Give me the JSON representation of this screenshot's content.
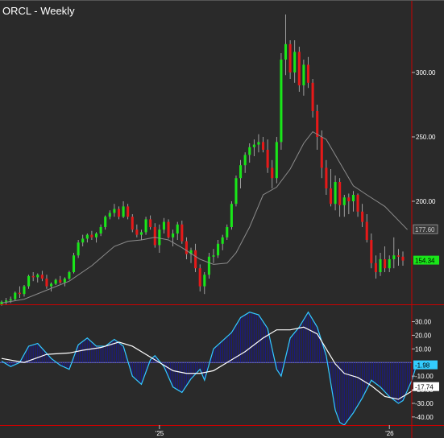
{
  "header": {
    "title": "ORCL - Weekly"
  },
  "colors": {
    "background": "#2a2a2a",
    "up": "#19e619",
    "down": "#e61919",
    "sma": "#8c8c8c",
    "macd_line": "#33ccff",
    "signal_line": "#ffffff",
    "histogram": "#1a1a80",
    "divider": "#cc0000"
  },
  "chart_data": [
    {
      "type": "candlestick",
      "title": "ORCL - Weekly",
      "y_ticks": [
        "300.00",
        "250.00",
        "200.00"
      ],
      "ylim": [
        120,
        345
      ],
      "x_ticks": [
        "'25",
        "'26"
      ],
      "last_close_label": "154.34",
      "sma_label": "177.60",
      "ohlc": [
        [
          120,
          123,
          119,
          122
        ],
        [
          122,
          125,
          120,
          123
        ],
        [
          123,
          126,
          121,
          124
        ],
        [
          124,
          130,
          123,
          129
        ],
        [
          129,
          134,
          125,
          128
        ],
        [
          128,
          135,
          126,
          134
        ],
        [
          134,
          143,
          132,
          142
        ],
        [
          142,
          145,
          138,
          141
        ],
        [
          141,
          144,
          137,
          143
        ],
        [
          143,
          146,
          138,
          140
        ],
        [
          140,
          143,
          132,
          134
        ],
        [
          134,
          137,
          130,
          136
        ],
        [
          136,
          140,
          135,
          139
        ],
        [
          139,
          142,
          136,
          137
        ],
        [
          137,
          141,
          134,
          140
        ],
        [
          140,
          146,
          139,
          145
        ],
        [
          145,
          160,
          144,
          158
        ],
        [
          158,
          170,
          156,
          168
        ],
        [
          168,
          174,
          165,
          171
        ],
        [
          171,
          175,
          168,
          174
        ],
        [
          174,
          177,
          170,
          172
        ],
        [
          172,
          176,
          168,
          175
        ],
        [
          175,
          182,
          173,
          180
        ],
        [
          180,
          189,
          178,
          188
        ],
        [
          188,
          193,
          186,
          191
        ],
        [
          191,
          198,
          188,
          194
        ],
        [
          194,
          196,
          186,
          188
        ],
        [
          188,
          200,
          187,
          196
        ],
        [
          196,
          198,
          186,
          188
        ],
        [
          188,
          190,
          176,
          178
        ],
        [
          178,
          182,
          172,
          174
        ],
        [
          174,
          178,
          170,
          176
        ],
        [
          176,
          188,
          174,
          186
        ],
        [
          186,
          189,
          178,
          180
        ],
        [
          180,
          183,
          164,
          166
        ],
        [
          166,
          182,
          160,
          178
        ],
        [
          178,
          187,
          175,
          184
        ],
        [
          184,
          186,
          171,
          172
        ],
        [
          172,
          178,
          165,
          175
        ],
        [
          175,
          184,
          170,
          182
        ],
        [
          182,
          185,
          167,
          169
        ],
        [
          169,
          172,
          155,
          159
        ],
        [
          159,
          164,
          152,
          162
        ],
        [
          162,
          167,
          145,
          148
        ],
        [
          148,
          151,
          130,
          134
        ],
        [
          134,
          145,
          128,
          143
        ],
        [
          143,
          160,
          140,
          157
        ],
        [
          157,
          163,
          152,
          158
        ],
        [
          158,
          170,
          156,
          167
        ],
        [
          167,
          174,
          162,
          172
        ],
        [
          172,
          182,
          170,
          180
        ],
        [
          180,
          200,
          178,
          198
        ],
        [
          198,
          220,
          196,
          218
        ],
        [
          218,
          232,
          210,
          228
        ],
        [
          228,
          238,
          222,
          236
        ],
        [
          236,
          245,
          230,
          242
        ],
        [
          242,
          248,
          235,
          244
        ],
        [
          244,
          252,
          238,
          246
        ],
        [
          246,
          250,
          238,
          240
        ],
        [
          240,
          248,
          222,
          226
        ],
        [
          226,
          232,
          210,
          218
        ],
        [
          218,
          250,
          214,
          246
        ],
        [
          246,
          315,
          240,
          310
        ],
        [
          310,
          345,
          298,
          322
        ],
        [
          322,
          325,
          295,
          300
        ],
        [
          300,
          325,
          292,
          316
        ],
        [
          316,
          320,
          285,
          290
        ],
        [
          290,
          310,
          282,
          306
        ],
        [
          306,
          312,
          288,
          292
        ],
        [
          292,
          295,
          265,
          270
        ],
        [
          270,
          275,
          240,
          250
        ],
        [
          250,
          255,
          218,
          226
        ],
        [
          226,
          232,
          205,
          210
        ],
        [
          210,
          225,
          196,
          198
        ],
        [
          198,
          220,
          193,
          215
        ],
        [
          215,
          218,
          188,
          197
        ],
        [
          197,
          205,
          188,
          203
        ],
        [
          203,
          206,
          190,
          200
        ],
        [
          200,
          208,
          192,
          205
        ],
        [
          205,
          206,
          188,
          192
        ],
        [
          192,
          198,
          180,
          184
        ],
        [
          184,
          190,
          168,
          170
        ],
        [
          170,
          175,
          148,
          152
        ],
        [
          152,
          158,
          140,
          145
        ],
        [
          145,
          160,
          142,
          155
        ],
        [
          155,
          165,
          145,
          148
        ],
        [
          148,
          158,
          145,
          155
        ],
        [
          155,
          172,
          148,
          158
        ],
        [
          158,
          163,
          150,
          157
        ],
        [
          157,
          161,
          150,
          154
        ]
      ],
      "sma": [
        [
          0,
          121
        ],
        [
          5,
          124
        ],
        [
          10,
          131
        ],
        [
          15,
          138
        ],
        [
          20,
          150
        ],
        [
          25,
          165
        ],
        [
          28,
          169
        ],
        [
          31,
          170
        ],
        [
          34,
          172
        ],
        [
          37,
          170
        ],
        [
          40,
          164
        ],
        [
          44,
          155
        ],
        [
          47,
          151
        ],
        [
          50,
          152
        ],
        [
          52,
          160
        ],
        [
          55,
          180
        ],
        [
          58,
          205
        ],
        [
          61,
          211
        ],
        [
          64,
          225
        ],
        [
          67,
          245
        ],
        [
          69,
          254
        ],
        [
          72,
          248
        ],
        [
          75,
          230
        ],
        [
          78,
          212
        ],
        [
          81,
          205
        ],
        [
          85,
          196
        ],
        [
          90,
          178
        ]
      ]
    },
    {
      "type": "line",
      "title": "",
      "y_ticks": [
        "30.00",
        "20.00",
        "10.00",
        "-10.00",
        "-20.00",
        "-30.00",
        "-40.00"
      ],
      "ylim": [
        -46,
        38
      ],
      "macd_label": "-1.98",
      "signal_label": "-17.74",
      "macd": [
        [
          0,
          1
        ],
        [
          2,
          -3
        ],
        [
          4,
          0
        ],
        [
          6,
          12
        ],
        [
          8,
          14
        ],
        [
          11,
          3
        ],
        [
          13,
          -2
        ],
        [
          15,
          -5
        ],
        [
          17,
          13
        ],
        [
          19,
          18
        ],
        [
          21,
          12
        ],
        [
          23,
          12
        ],
        [
          25,
          17
        ],
        [
          27,
          12
        ],
        [
          29,
          -10
        ],
        [
          31,
          -16
        ],
        [
          33,
          2
        ],
        [
          34,
          5
        ],
        [
          36,
          -3
        ],
        [
          38,
          -18
        ],
        [
          40,
          -22
        ],
        [
          42,
          -12
        ],
        [
          44,
          -5
        ],
        [
          45,
          -13
        ],
        [
          47,
          10
        ],
        [
          49,
          16
        ],
        [
          51,
          22
        ],
        [
          53,
          33
        ],
        [
          55,
          37
        ],
        [
          57,
          35
        ],
        [
          59,
          25
        ],
        [
          61,
          -5
        ],
        [
          62,
          -10
        ],
        [
          64,
          18
        ],
        [
          66,
          26
        ],
        [
          68,
          37
        ],
        [
          70,
          26
        ],
        [
          72,
          5
        ],
        [
          74,
          -35
        ],
        [
          75,
          -44
        ],
        [
          76,
          -46
        ],
        [
          78,
          -37
        ],
        [
          80,
          -26
        ],
        [
          82,
          -13
        ],
        [
          84,
          -18
        ],
        [
          86,
          -25
        ],
        [
          88,
          -30
        ],
        [
          89,
          -28
        ],
        [
          91,
          -13
        ],
        [
          92,
          -2
        ]
      ],
      "signal": [
        [
          0,
          3
        ],
        [
          5,
          0
        ],
        [
          10,
          6
        ],
        [
          15,
          7
        ],
        [
          18,
          9
        ],
        [
          22,
          11
        ],
        [
          26,
          15
        ],
        [
          29,
          12
        ],
        [
          32,
          6
        ],
        [
          35,
          0
        ],
        [
          38,
          -6
        ],
        [
          41,
          -8
        ],
        [
          44,
          -8
        ],
        [
          47,
          -6
        ],
        [
          50,
          0
        ],
        [
          54,
          8
        ],
        [
          58,
          18
        ],
        [
          61,
          24
        ],
        [
          64,
          24
        ],
        [
          67,
          26
        ],
        [
          70,
          21
        ],
        [
          72,
          10
        ],
        [
          74,
          -1
        ],
        [
          76,
          -8
        ],
        [
          79,
          -11
        ],
        [
          82,
          -17
        ],
        [
          85,
          -25
        ],
        [
          88,
          -27
        ],
        [
          91,
          -21
        ],
        [
          92,
          -18
        ]
      ]
    }
  ]
}
